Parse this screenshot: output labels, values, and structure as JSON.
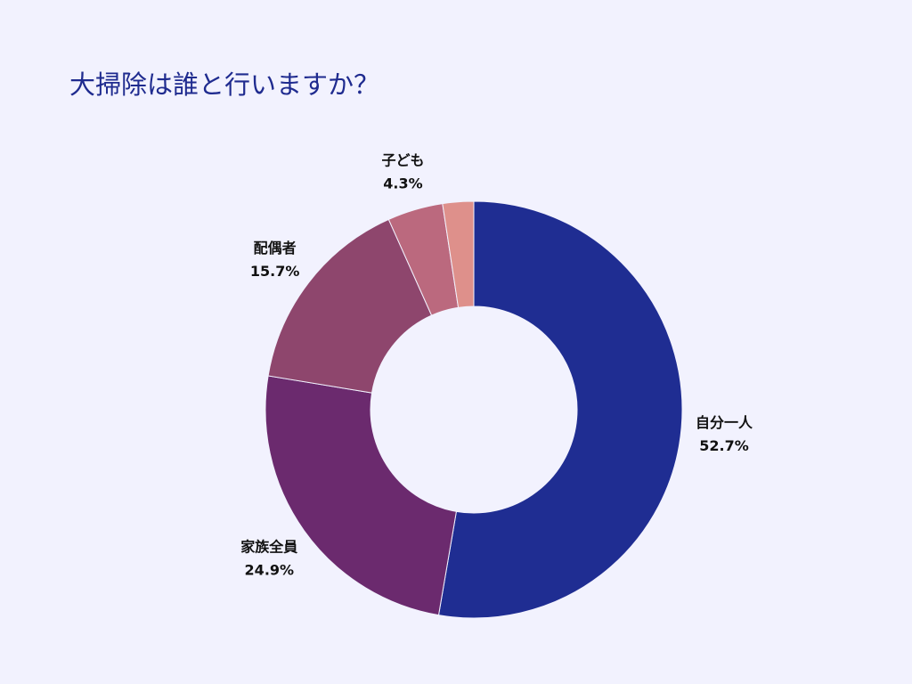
{
  "page": {
    "title": "大掃除は誰と行いますか？"
  },
  "chart_data": {
    "type": "pie",
    "style": "donut",
    "title": "大掃除は誰と行いますか？",
    "categories": [
      "自分一人",
      "家族全員",
      "配偶者",
      "子ども",
      ""
    ],
    "values": [
      52.7,
      24.9,
      15.7,
      4.3,
      2.4
    ],
    "value_labels": [
      "52.7%",
      "24.9%",
      "15.7%",
      "4.3%",
      ""
    ],
    "colors": [
      "#1f2d92",
      "#6b2a6e",
      "#8e466d",
      "#bb697e",
      "#de908b"
    ],
    "start": "12 o'clock",
    "direction": "clockwise",
    "legend": "none"
  }
}
